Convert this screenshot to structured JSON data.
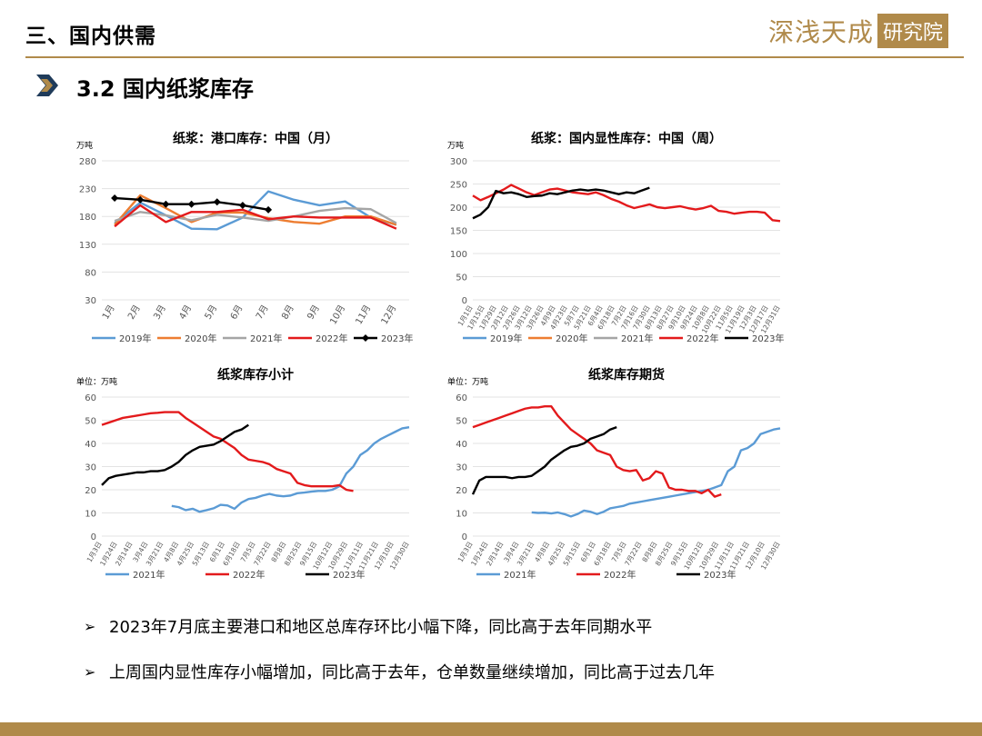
{
  "header": {
    "title": "三、国内供需",
    "logo_text": "深浅天成",
    "logo_seal": "研究院"
  },
  "section": {
    "title": "3.2 国内纸浆库存"
  },
  "colors": {
    "gold": "#b08a4a",
    "y2019": "#5b9bd5",
    "y2020": "#ed7d31",
    "y2021": "#a5a5a5",
    "y2022": "#e31a1c",
    "y2023": "#000000",
    "blue": "#5b9bd5",
    "red": "#e31a1c",
    "black": "#000000"
  },
  "bullets": [
    "2023年7月底主要港口和地区总库存环比小幅下降，同比高于去年同期水平",
    "上周国内显性库存小幅增加，同比高于去年，仓单数量继续增加，同比高于过去几年"
  ],
  "chart_data": [
    {
      "type": "line",
      "title": "纸浆：港口库存：中国（月）",
      "unit": "万吨",
      "categories": [
        "1月",
        "2月",
        "3月",
        "4月",
        "5月",
        "6月",
        "7月",
        "8月",
        "9月",
        "10月",
        "11月",
        "12月"
      ],
      "ylim": [
        30,
        280
      ],
      "yticks": [
        30,
        80,
        130,
        180,
        230,
        280
      ],
      "legend_position": "bottom",
      "series": [
        {
          "name": "2019年",
          "color": "#5b9bd5",
          "values": [
            168,
            205,
            182,
            158,
            157,
            178,
            225,
            210,
            200,
            207,
            178,
            165
          ]
        },
        {
          "name": "2020年",
          "color": "#ed7d31",
          "values": [
            165,
            218,
            195,
            170,
            187,
            187,
            177,
            170,
            167,
            180,
            180,
            165
          ]
        },
        {
          "name": "2021年",
          "color": "#a5a5a5",
          "values": [
            172,
            188,
            182,
            173,
            183,
            178,
            172,
            180,
            190,
            195,
            193,
            168
          ]
        },
        {
          "name": "2022年",
          "color": "#e31a1c",
          "values": [
            162,
            200,
            170,
            188,
            188,
            192,
            175,
            180,
            178,
            178,
            178,
            158
          ]
        },
        {
          "name": "2023年",
          "color": "#000000",
          "marker": "diamond",
          "values": [
            213,
            210,
            202,
            202,
            206,
            200,
            192,
            null,
            null,
            null,
            null,
            null
          ]
        }
      ]
    },
    {
      "type": "line",
      "title": "纸浆：国内显性库存：中国（周）",
      "unit": "万吨",
      "x_labels": [
        "1月1日",
        "1月15日",
        "1月29日",
        "2月12日",
        "2月26日",
        "3月12日",
        "3月26日",
        "4月9日",
        "4月23日",
        "5月7日",
        "5月21日",
        "6月4日",
        "6月18日",
        "7月2日",
        "7月16日",
        "7月30日",
        "8月13日",
        "8月27日",
        "9月10日",
        "9月24日",
        "10月8日",
        "10月22日",
        "11月5日",
        "11月19日",
        "12月3日",
        "12月17日",
        "12月31日"
      ],
      "ylim": [
        0,
        300
      ],
      "yticks": [
        0,
        50,
        100,
        150,
        200,
        250,
        300
      ],
      "legend_position": "bottom",
      "series": [
        {
          "name": "2019年",
          "color": "#5b9bd5",
          "values": []
        },
        {
          "name": "2020年",
          "color": "#ed7d31",
          "values": []
        },
        {
          "name": "2021年",
          "color": "#a5a5a5",
          "values": []
        },
        {
          "name": "2022年",
          "color": "#e31a1c",
          "values": [
            225,
            215,
            222,
            230,
            238,
            248,
            240,
            232,
            226,
            232,
            238,
            240,
            236,
            232,
            230,
            228,
            232,
            226,
            218,
            212,
            204,
            198,
            202,
            206,
            200,
            198,
            200,
            202,
            198,
            195,
            198,
            203,
            192,
            190,
            186,
            188,
            190,
            190,
            188,
            172,
            170
          ]
        },
        {
          "name": "2023年",
          "color": "#000000",
          "values": [
            176,
            184,
            200,
            235,
            230,
            232,
            228,
            222,
            224,
            225,
            230,
            228,
            232,
            236,
            238,
            236,
            238,
            236,
            232,
            228,
            232,
            230,
            236,
            242
          ]
        }
      ]
    },
    {
      "type": "line",
      "title": "纸浆库存小计",
      "unit": "单位：万吨",
      "x_labels": [
        "1月3日",
        "1月24日",
        "2月14日",
        "3月4日",
        "3月21日",
        "4月8日",
        "4月25日",
        "5月13日",
        "6月1日",
        "6月18日",
        "7月5日",
        "7月22日",
        "8月8日",
        "8月25日",
        "9月15日",
        "10月12日",
        "10月29日",
        "11月11日",
        "11月21日",
        "12月10日",
        "12月30日"
      ],
      "ylim": [
        0,
        60
      ],
      "yticks": [
        0,
        10,
        20,
        30,
        40,
        50,
        60
      ],
      "legend_position": "bottom",
      "series": [
        {
          "name": "2021年",
          "color": "#5b9bd5",
          "values": [
            null,
            null,
            null,
            null,
            null,
            null,
            null,
            null,
            null,
            null,
            13,
            12.5,
            11.2,
            11.8,
            10.5,
            11.2,
            12,
            13.5,
            13.2,
            11.8,
            14.5,
            16,
            16.5,
            17.5,
            18.2,
            17.5,
            17.2,
            17.5,
            18.5,
            18.8,
            19.2,
            19.5,
            19.5,
            20,
            21.5,
            27,
            30,
            35,
            37,
            40,
            42,
            43.5,
            45,
            46.5,
            47
          ]
        },
        {
          "name": "2022年",
          "color": "#e31a1c",
          "values": [
            48,
            49,
            50,
            51,
            51.5,
            52,
            52.5,
            53,
            53.2,
            53.5,
            53.5,
            53.5,
            51,
            49,
            47,
            45,
            43,
            42,
            40,
            38,
            35,
            33,
            32.5,
            32,
            31,
            29,
            28,
            27,
            23,
            22,
            21.5,
            21.5,
            21.5,
            21.5,
            22,
            20,
            19.5
          ]
        },
        {
          "name": "2023年",
          "color": "#000000",
          "values": [
            22,
            25,
            26,
            26.5,
            27,
            27.5,
            27.5,
            28,
            28,
            28.5,
            30,
            32,
            35,
            37,
            38.5,
            39,
            39.5,
            41,
            43,
            45,
            46,
            48
          ]
        }
      ]
    },
    {
      "type": "line",
      "title": "纸浆库存期货",
      "unit": "单位：万吨",
      "x_labels": [
        "1月3日",
        "1月24日",
        "2月14日",
        "3月4日",
        "3月21日",
        "4月8日",
        "4月25日",
        "5月15日",
        "6月1日",
        "6月18日",
        "7月5日",
        "7月22日",
        "8月8日",
        "8月25日",
        "9月15日",
        "10月12日",
        "10月29日",
        "11月11日",
        "11月21日",
        "12月10日",
        "12月30日"
      ],
      "ylim": [
        0,
        60
      ],
      "yticks": [
        0,
        10,
        20,
        30,
        40,
        50,
        60
      ],
      "legend_position": "bottom",
      "series": [
        {
          "name": "2021年",
          "color": "#5b9bd5",
          "values": [
            null,
            null,
            null,
            null,
            null,
            null,
            null,
            null,
            null,
            10.2,
            10,
            10.1,
            9.8,
            10.2,
            9.5,
            8.5,
            9.5,
            11,
            10.5,
            9.5,
            10.5,
            12,
            12.5,
            13,
            14,
            14.5,
            15,
            15.5,
            16,
            16.5,
            17,
            17.5,
            18,
            18.5,
            19,
            19.5,
            20,
            21,
            22,
            28,
            30,
            37,
            38,
            40,
            44,
            45,
            46,
            46.5
          ]
        },
        {
          "name": "2022年",
          "color": "#e31a1c",
          "values": [
            47,
            48,
            49,
            50,
            51,
            52,
            53,
            54,
            55,
            55.5,
            55.5,
            56,
            56,
            52,
            49,
            46,
            44,
            42,
            40,
            37,
            36,
            35,
            30,
            28.5,
            28,
            28.5,
            24,
            25,
            28,
            27,
            21,
            20,
            20,
            19.5,
            19.5,
            18.5,
            20,
            17,
            18
          ]
        },
        {
          "name": "2023年",
          "color": "#000000",
          "values": [
            18,
            24,
            25.5,
            25.5,
            25.5,
            25.5,
            25,
            25.5,
            25.5,
            26,
            28,
            30,
            33,
            35,
            37,
            38.5,
            39,
            40,
            42,
            43,
            44,
            46,
            47
          ]
        }
      ]
    }
  ]
}
